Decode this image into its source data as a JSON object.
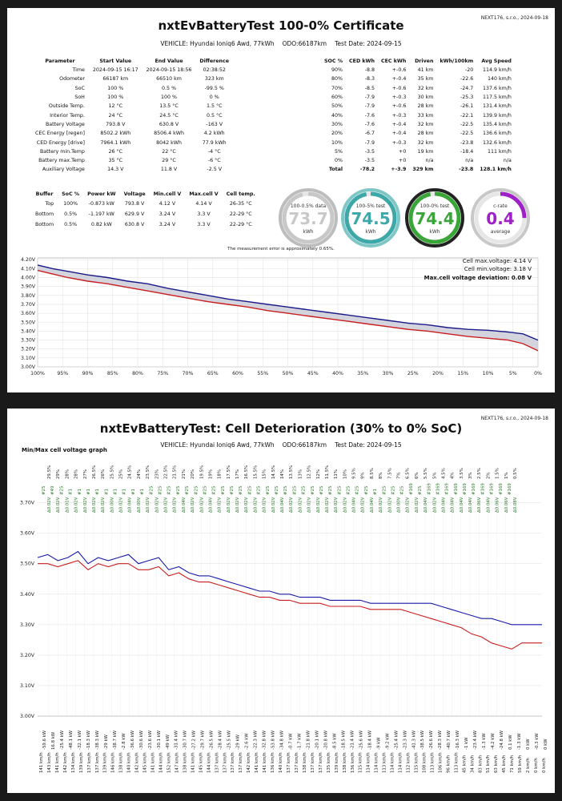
{
  "page1": {
    "company": "NEXT176, s.r.o., 2024-09-18",
    "title": "nxtEvBatteryTest 100-0% Certificate",
    "vehicle": "VEHICLE: Hyundai Ioniq6 Awd, 77kWh",
    "odo": "ODO:66187km",
    "test_date": "Test Date: 2024-09-15",
    "params": {
      "headers": [
        "Parameter",
        "Start Value",
        "End Value",
        "Difference"
      ],
      "rows": [
        [
          "Time",
          "2024-09-15 16:17",
          "2024-09-15 18:56",
          "02:38:52"
        ],
        [
          "Odometer",
          "66187 km",
          "66510 km",
          "323 km"
        ],
        [
          "SoC",
          "100 %",
          "0.5 %",
          "-99.5 %"
        ],
        [
          "SoH",
          "100 %",
          "100 %",
          "0 %"
        ],
        [
          "Outside Temp.",
          "12 °C",
          "13.5 °C",
          "1.5 °C"
        ],
        [
          "Interior Temp.",
          "24 °C",
          "24.5 °C",
          "0.5 °C"
        ],
        [
          "Battery Voltage",
          "793.8 V",
          "630.8 V",
          "-163 V"
        ],
        [
          "CEC Energy [regen]",
          "8502.2 kWh",
          "8506.4 kWh",
          "4.2 kWh"
        ],
        [
          "CED Energy [drive]",
          "7964.1 kWh",
          "8042 kWh",
          "77.9 kWh"
        ],
        [
          "Battery min.Temp",
          "26 °C",
          "22 °C",
          "-4 °C"
        ],
        [
          "Battery max.Temp",
          "35 °C",
          "29 °C",
          "-6 °C"
        ],
        [
          "Auxiliary Voltage",
          "14.3 V",
          "11.8 V",
          "-2.5 V"
        ]
      ]
    },
    "soc_table": {
      "headers": [
        "SOC %",
        "CED kWh",
        "CEC kWh",
        "Driven",
        "kWh/100km",
        "Avg Speed"
      ],
      "rows": [
        [
          "90%",
          "-8.8",
          "+-0.6",
          "41 km",
          "-20",
          "114.9 km/h"
        ],
        [
          "80%",
          "-8.3",
          "+-0.4",
          "35 km",
          "-22.6",
          "140 km/h"
        ],
        [
          "70%",
          "-8.5",
          "+-0.6",
          "32 km",
          "-24.7",
          "137.6 km/h"
        ],
        [
          "60%",
          "-7.9",
          "+-0.3",
          "30 km",
          "-25.3",
          "117.5 km/h"
        ],
        [
          "50%",
          "-7.9",
          "+-0.6",
          "28 km",
          "-26.1",
          "131.4 km/h"
        ],
        [
          "40%",
          "-7.6",
          "+-0.3",
          "33 km",
          "-22.1",
          "139.9 km/h"
        ],
        [
          "30%",
          "-7.6",
          "+-0.4",
          "32 km",
          "-22.5",
          "135.4 km/h"
        ],
        [
          "20%",
          "-6.7",
          "+-0.4",
          "28 km",
          "-22.5",
          "136.6 km/h"
        ],
        [
          "10%",
          "-7.9",
          "+-0.3",
          "32 km",
          "-23.8",
          "132.6 km/h"
        ],
        [
          "5%",
          "-3.5",
          "+0",
          "19 km",
          "-18.4",
          "111 km/h"
        ],
        [
          "0%",
          "-3.5",
          "+0",
          "n/a",
          "n/a",
          "n/a"
        ]
      ],
      "total": [
        "Total",
        "-78.2",
        "+-3.9",
        "329 km",
        "-23.8",
        "128.1 km/h"
      ]
    },
    "buffer": {
      "headers": [
        "Buffer",
        "SoC %",
        "Power kW",
        "Voltage",
        "Min.cell V",
        "Max.cell V",
        "Cell temp."
      ],
      "rows": [
        [
          "Top",
          "100%",
          "-0.873 kW",
          "793.8 V",
          "4.12 V",
          "4.14 V",
          "26-35 °C"
        ],
        [
          "Bottom",
          "0.5%",
          "-1.197 kW",
          "629.9 V",
          "3.24 V",
          "3.3 V",
          "22-29 °C"
        ],
        [
          "Bottom",
          "0.5%",
          "0.82 kW",
          "630.8 V",
          "3.24 V",
          "3.3 V",
          "22-29 °C"
        ]
      ]
    },
    "gauges": [
      {
        "top": "100-0.5% data",
        "value": "73.7",
        "unit": "kWh",
        "color": "#c8c8c8",
        "ring": "#bdbdbd",
        "fill": 0.96
      },
      {
        "top": "100-5% test",
        "value": "74.5",
        "unit": "kWh",
        "color": "#3ea8a8",
        "ring": "#7fc6c6",
        "fill": 0.97
      },
      {
        "top": "100-0% test",
        "value": "74.4",
        "unit": "kWh",
        "color": "#3aa63a",
        "ring": "#222222",
        "fill": 0.97
      },
      {
        "top": "c-rate",
        "value": "0.4",
        "unit": "average",
        "color": "#a020c8",
        "ring": "#c8c8c8",
        "fill": 0.25
      }
    ],
    "note": "The measurement error is approximately 0.65%.",
    "chart_data": {
      "type": "line",
      "title": "",
      "xlabel": "",
      "ylabel": "",
      "x_ticks": [
        "100%",
        "95%",
        "90%",
        "85%",
        "80%",
        "75%",
        "70%",
        "65%",
        "60%",
        "55%",
        "50%",
        "45%",
        "40%",
        "35%",
        "30%",
        "25%",
        "20%",
        "15%",
        "10%",
        "5%",
        "0%"
      ],
      "y_ticks": [
        "4.20V",
        "4.10V",
        "4.00V",
        "3.90V",
        "3.80V",
        "3.70V",
        "3.60V",
        "3.50V",
        "3.40V",
        "3.30V",
        "3.20V",
        "3.10V",
        "3.00V"
      ],
      "ylim": [
        3.0,
        4.22
      ],
      "xlim": [
        100,
        0
      ],
      "annotations": [
        "Cell max.voltage: 4.14 V",
        "Cell min.voltage: 3.18 V",
        "Max.cell voltage deviation: 0.08 V"
      ],
      "series": [
        {
          "role": "max",
          "color": "#1a1a8a",
          "x": [
            100,
            97,
            94,
            90,
            86,
            82,
            78,
            74,
            70,
            66,
            62,
            58,
            54,
            50,
            46,
            42,
            38,
            34,
            30,
            26,
            22,
            18,
            14,
            10,
            6,
            3,
            0
          ],
          "values": [
            4.14,
            4.1,
            4.07,
            4.03,
            4.0,
            3.96,
            3.93,
            3.88,
            3.84,
            3.8,
            3.76,
            3.73,
            3.7,
            3.67,
            3.64,
            3.61,
            3.58,
            3.55,
            3.52,
            3.49,
            3.47,
            3.44,
            3.42,
            3.41,
            3.39,
            3.37,
            3.3
          ]
        },
        {
          "role": "min",
          "color": "#c81e1e",
          "x": [
            100,
            97,
            94,
            90,
            86,
            82,
            78,
            74,
            70,
            66,
            62,
            58,
            54,
            50,
            46,
            42,
            38,
            34,
            30,
            26,
            22,
            18,
            14,
            10,
            6,
            3,
            0
          ],
          "values": [
            4.08,
            4.04,
            4.0,
            3.96,
            3.93,
            3.89,
            3.85,
            3.81,
            3.77,
            3.73,
            3.7,
            3.67,
            3.63,
            3.6,
            3.57,
            3.54,
            3.51,
            3.48,
            3.45,
            3.42,
            3.4,
            3.37,
            3.34,
            3.32,
            3.3,
            3.26,
            3.18
          ]
        }
      ]
    }
  },
  "page2": {
    "company": "NEXT176, s.r.o., 2024-09-18",
    "title": "nxtEvBatteryTest: Cell Deterioration (30% to 0% SoC)",
    "vehicle": "VEHICLE: Hyundai Ioniq6 Awd, 77kWh",
    "odo": "ODO:66187km",
    "test_date": "Test Date: 2024-09-15",
    "section_label": "Min/Max cell voltage graph",
    "chart_data": {
      "type": "line",
      "title": "",
      "xlabel": "",
      "ylabel": "",
      "y_ticks": [
        "3.70V",
        "3.60V",
        "3.50V",
        "3.40V",
        "3.30V",
        "3.20V",
        "3.10V",
        "3.00V"
      ],
      "ylim": [
        3.0,
        3.72
      ],
      "soc_labels": [
        "29.5%",
        "29%",
        "28%",
        "28%",
        "27%",
        "26.5%",
        "26%",
        "25.5%",
        "25%",
        "24.5%",
        "24%",
        "23.5%",
        "23%",
        "22.5%",
        "21.5%",
        "21%",
        "20%",
        "19.5%",
        "19%",
        "18%",
        "17.5%",
        "17%",
        "16.5%",
        "15.5%",
        "15%",
        "14.5%",
        "14%",
        "13.5%",
        "13%",
        "12.5%",
        "12%",
        "11.5%",
        "11%",
        "10%",
        "9.5%",
        "9%",
        "8.5%",
        "8%",
        "7.5%",
        "7%",
        "6.5%",
        "6%",
        "5.5%",
        "5%",
        "4.5%",
        "4%",
        "3.5%",
        "3%",
        "2.5%",
        "2%",
        "1.5%",
        "1%",
        "0.5%"
      ],
      "cell_labels": [
        "#25",
        "#49",
        "#25",
        "#1",
        "#1",
        "#1",
        "#1",
        "#1",
        "#1",
        "#1",
        "#1",
        "#1",
        "#25",
        "#25",
        "#25",
        "#25",
        "#25",
        "#25",
        "#25",
        "#25",
        "#25",
        "#25",
        "#25",
        "#25",
        "#25",
        "#25",
        "#25",
        "#25",
        "#25",
        "#25",
        "#25",
        "#25",
        "#25",
        "#25",
        "#25",
        "#25",
        "#25",
        "#1",
        "#25",
        "#25",
        "#25",
        "#169",
        "#25",
        "#169",
        "#169",
        "#169",
        "#169",
        "#169",
        "#169",
        "#169",
        "#169",
        "#169",
        "#169"
      ],
      "delta_labels": [
        "Δ0.02V",
        "Δ0.02V",
        "Δ0.01V",
        "Δ0.02V",
        "Δ0.02V",
        "Δ0.02V",
        "Δ0.02V",
        "Δ0.00V",
        "Δ0.02V",
        "Δ0.04V",
        "Δ0.00V",
        "Δ0.02V",
        "Δ0.02V",
        "Δ0.02V",
        "Δ0.02V",
        "Δ0.04V",
        "Δ0.02V",
        "Δ0.02V",
        "Δ0.04V",
        "Δ0.02V",
        "Δ0.02V",
        "Δ0.02V",
        "Δ0.02V",
        "Δ0.02V",
        "Δ0.02V",
        "Δ0.02V",
        "Δ0.04V",
        "Δ0.02V",
        "Δ0.02V",
        "Δ0.02V",
        "Δ0.02V",
        "Δ0.02V",
        "Δ0.02V",
        "Δ0.02V",
        "Δ0.04V",
        "Δ0.02V",
        "Δ0.04V",
        "Δ0.02V",
        "Δ0.02V",
        "Δ0.00V",
        "Δ0.02V",
        "Δ0.02V",
        "Δ0.04V",
        "Δ0.02V",
        "Δ0.04V",
        "Δ0.04V",
        "Δ0.04V",
        "Δ0.04V",
        "Δ0.06V",
        "Δ0.04V",
        "Δ0.06V",
        "Δ0.06V",
        "Δ0.08V"
      ],
      "bottom_labels": [
        "141 km/h",
        "143 km/h",
        "141 km/h",
        "142 km/h",
        "134 km/h",
        "139 km/h",
        "137 km/h",
        "137 km/h",
        "139 km/h",
        "146 km/h",
        "138 km/h",
        "140 km/h",
        "142 km/h",
        "145 km/h",
        "141 km/h",
        "144 km/h",
        "152 km/h",
        "147 km/h",
        "138 km/h",
        "141 km/h",
        "145 km/h",
        "144 km/h",
        "137 km/h",
        "137 km/h",
        "137 km/h",
        "137 km/h",
        "142 km/h",
        "141 km/h",
        "141 km/h",
        "136 km/h",
        "140 km/h",
        "137 km/h",
        "137 km/h",
        "138 km/h",
        "137 km/h",
        "137 km/h",
        "135 km/h",
        "139 km/h",
        "138 km/h",
        "136 km/h",
        "115 km/h",
        "114 km/h",
        "114 km/h",
        "113 km/h",
        "114 km/h",
        "114 km/h",
        "112 km/h",
        "115 km/h",
        "108 km/h",
        "113 km/h",
        "106 km/h",
        "96 km/h",
        "113 km/h",
        "45 km/h",
        "34 km/h",
        "83 km/h",
        "51 km/h",
        "63 km/h",
        "45 km/h",
        "71 km/h",
        "59 km/h",
        "2 km/h",
        "0 km/h",
        "0 km/h"
      ],
      "bottom_values": [
        "-59.6 kW",
        "16.8 kW",
        "-25.4 kW",
        "-48.1 kW",
        "-32.1 kW",
        "-18.3 kW",
        "-38.3 kW",
        "-29 kW",
        "-38.7 kW",
        "-2.8 kW",
        "-36.6 kW",
        "-30.6 kW",
        "-23.6 kW",
        "-30.1 kW",
        "-49 kW",
        "-31.4 kW",
        "-30.7 kW",
        "-27.2 kW",
        "-29.7 kW",
        "-26.5 kW",
        "-28.4 kW",
        "-25.5 kW",
        "-29 kW",
        "-2.6 kW",
        "-22.3 kW",
        "-32.8 kW",
        "-53.8 kW",
        "-34.8 kW",
        "-0.7 kW",
        "-1.7 kW",
        "-21.8 kW",
        "-20.1 kW",
        "-20.8 kW",
        "-8.5 kW",
        "-18.5 kW",
        "-21.4 kW",
        "-25.6 kW",
        "-18.4 kW",
        "-9 kW",
        "-9.2 kW",
        "-25.4 kW",
        "-23.3 kW",
        "-41.3 kW",
        "-38.5 kW",
        "-26.6 kW",
        "-28.3 kW",
        "-40.7 kW",
        "-16.3 kW",
        "-1 kW",
        "-23.4 kW",
        "-1.3 kW",
        "-4.2 kW",
        "-24.8 kW",
        "0.1 kW",
        "-1.3 kW",
        "0 kW",
        "-0.3 kW",
        "0 kW"
      ],
      "series": [
        {
          "role": "max",
          "color": "#1a1aa8",
          "x": [
            0,
            2,
            4,
            6,
            8,
            10,
            12,
            14,
            16,
            18,
            20,
            22,
            24,
            26,
            28,
            30,
            32,
            34,
            36,
            38,
            40,
            42,
            44,
            46,
            48,
            50,
            52,
            54,
            56,
            58,
            60,
            62,
            64,
            66,
            68,
            70,
            72,
            74,
            76,
            78,
            80,
            82,
            84,
            86,
            88,
            90,
            92,
            94,
            96,
            98,
            100
          ],
          "values": [
            3.52,
            3.53,
            3.51,
            3.52,
            3.54,
            3.5,
            3.52,
            3.51,
            3.52,
            3.53,
            3.5,
            3.51,
            3.52,
            3.48,
            3.49,
            3.47,
            3.46,
            3.46,
            3.45,
            3.44,
            3.43,
            3.42,
            3.41,
            3.41,
            3.4,
            3.4,
            3.39,
            3.39,
            3.39,
            3.38,
            3.38,
            3.38,
            3.38,
            3.37,
            3.37,
            3.37,
            3.37,
            3.37,
            3.37,
            3.37,
            3.36,
            3.35,
            3.34,
            3.33,
            3.32,
            3.32,
            3.31,
            3.3,
            3.3,
            3.3,
            3.3
          ]
        },
        {
          "role": "min",
          "color": "#c81e1e",
          "x": [
            0,
            2,
            4,
            6,
            8,
            10,
            12,
            14,
            16,
            18,
            20,
            22,
            24,
            26,
            28,
            30,
            32,
            34,
            36,
            38,
            40,
            42,
            44,
            46,
            48,
            50,
            52,
            54,
            56,
            58,
            60,
            62,
            64,
            66,
            68,
            70,
            72,
            74,
            76,
            78,
            80,
            82,
            84,
            86,
            88,
            90,
            92,
            94,
            96,
            98,
            100
          ],
          "values": [
            3.5,
            3.5,
            3.49,
            3.5,
            3.51,
            3.48,
            3.5,
            3.49,
            3.5,
            3.5,
            3.48,
            3.48,
            3.49,
            3.46,
            3.47,
            3.45,
            3.44,
            3.44,
            3.43,
            3.42,
            3.41,
            3.4,
            3.39,
            3.39,
            3.38,
            3.38,
            3.37,
            3.37,
            3.37,
            3.36,
            3.36,
            3.36,
            3.36,
            3.35,
            3.35,
            3.35,
            3.35,
            3.34,
            3.33,
            3.32,
            3.31,
            3.3,
            3.29,
            3.27,
            3.26,
            3.24,
            3.23,
            3.22,
            3.24,
            3.24,
            3.24
          ]
        }
      ]
    }
  }
}
